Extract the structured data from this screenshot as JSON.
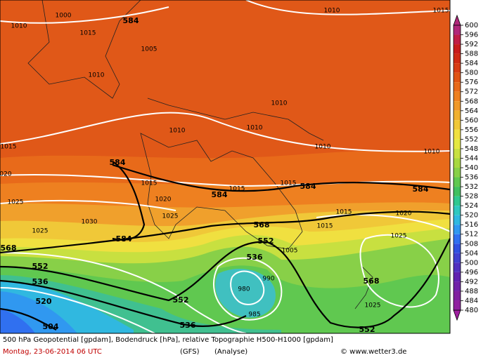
{
  "map": {
    "labels": [
      "1000",
      "1010",
      "1015",
      "584",
      "1005",
      "1010",
      "1010",
      "1015",
      "1010",
      "1010",
      "1010",
      "1015",
      "1010",
      "1010",
      "020",
      "584",
      "1015",
      "1015",
      "584",
      "1015",
      "584",
      "584",
      "1020",
      "1025",
      "1025",
      "1030",
      "1015",
      "1020",
      "1025",
      "1015",
      "568",
      "584",
      "552",
      "1025",
      "568",
      "1005",
      "536",
      "552",
      "568",
      "536",
      "520",
      "552",
      "980",
      "990",
      "985",
      "536",
      "504",
      "552",
      "1025"
    ],
    "bold": [
      false,
      false,
      false,
      true,
      false,
      false,
      false,
      false,
      false,
      false,
      false,
      false,
      false,
      false,
      false,
      true,
      false,
      false,
      true,
      false,
      true,
      true,
      false,
      false,
      false,
      false,
      false,
      false,
      false,
      false,
      true,
      true,
      true,
      false,
      true,
      false,
      true,
      true,
      true,
      true,
      true,
      true,
      false,
      false,
      false,
      true,
      true,
      true,
      false
    ]
  },
  "legend": {
    "values": [
      600,
      596,
      592,
      588,
      584,
      580,
      576,
      572,
      568,
      564,
      560,
      556,
      552,
      548,
      544,
      540,
      536,
      532,
      528,
      524,
      520,
      516,
      512,
      508,
      504,
      500,
      496,
      492,
      488,
      484,
      480
    ],
    "colors": [
      "#b0287a",
      "#c01e46",
      "#c81c1c",
      "#d02a14",
      "#d83c14",
      "#e05414",
      "#e86a1a",
      "#ee8020",
      "#f09828",
      "#f0b030",
      "#f0c838",
      "#f0e040",
      "#e4e842",
      "#c8e040",
      "#a8d840",
      "#88d048",
      "#60c850",
      "#40c060",
      "#30c890",
      "#30c8c0",
      "#30b8e0",
      "#3098f0",
      "#3070f0",
      "#3050e0",
      "#4040d0",
      "#5030c0",
      "#6020b0",
      "#7020a8",
      "#8020a0",
      "#9020a0",
      "#a020a0"
    ]
  },
  "footer": {
    "description": "500 hPa Geopotential [gpdam], Bodendruck [hPa], relative Topographie H500-H1000 [gpdam]",
    "date": "Montag, 23-06-2014  06 UTC",
    "model": "(GFS)",
    "run": "(Analyse)",
    "credit": "© www.wetter3.de"
  }
}
